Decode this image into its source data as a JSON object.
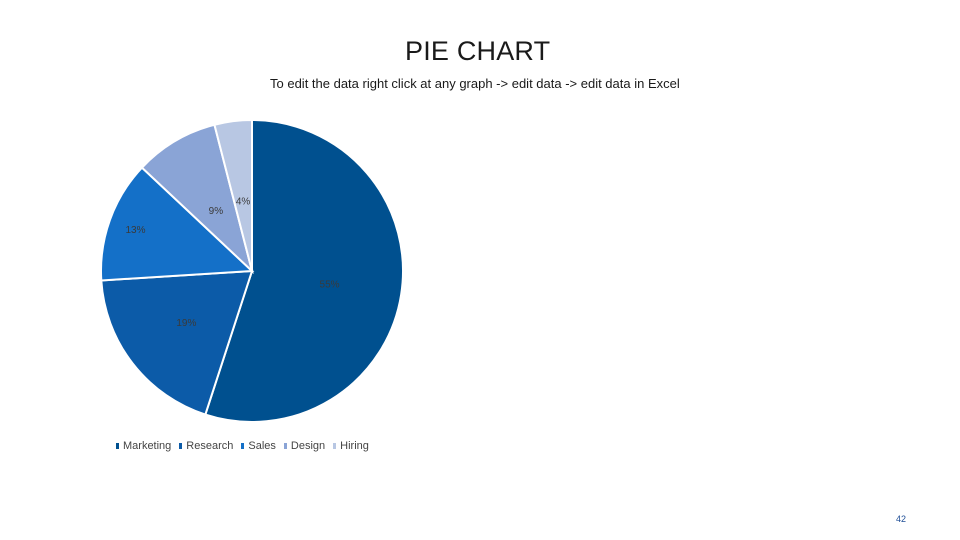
{
  "slide": {
    "title": "PIE CHART",
    "subtitle": "To edit the data right click at any graph -> edit data -> edit data in Excel",
    "page_number": "42"
  },
  "colors": {
    "Marketing": "#00508f",
    "Research": "#0c5ba8",
    "Sales": "#1470c8",
    "Design": "#8aa4d6",
    "Hiring": "#b8c7e3"
  },
  "chart_data": {
    "type": "pie",
    "title": "",
    "categories": [
      "Marketing",
      "Research",
      "Sales",
      "Design",
      "Hiring"
    ],
    "values": [
      55,
      19,
      13,
      9,
      4
    ],
    "data_labels": [
      "55%",
      "19%",
      "13%",
      "9%",
      "4%"
    ],
    "legend_position": "bottom"
  }
}
